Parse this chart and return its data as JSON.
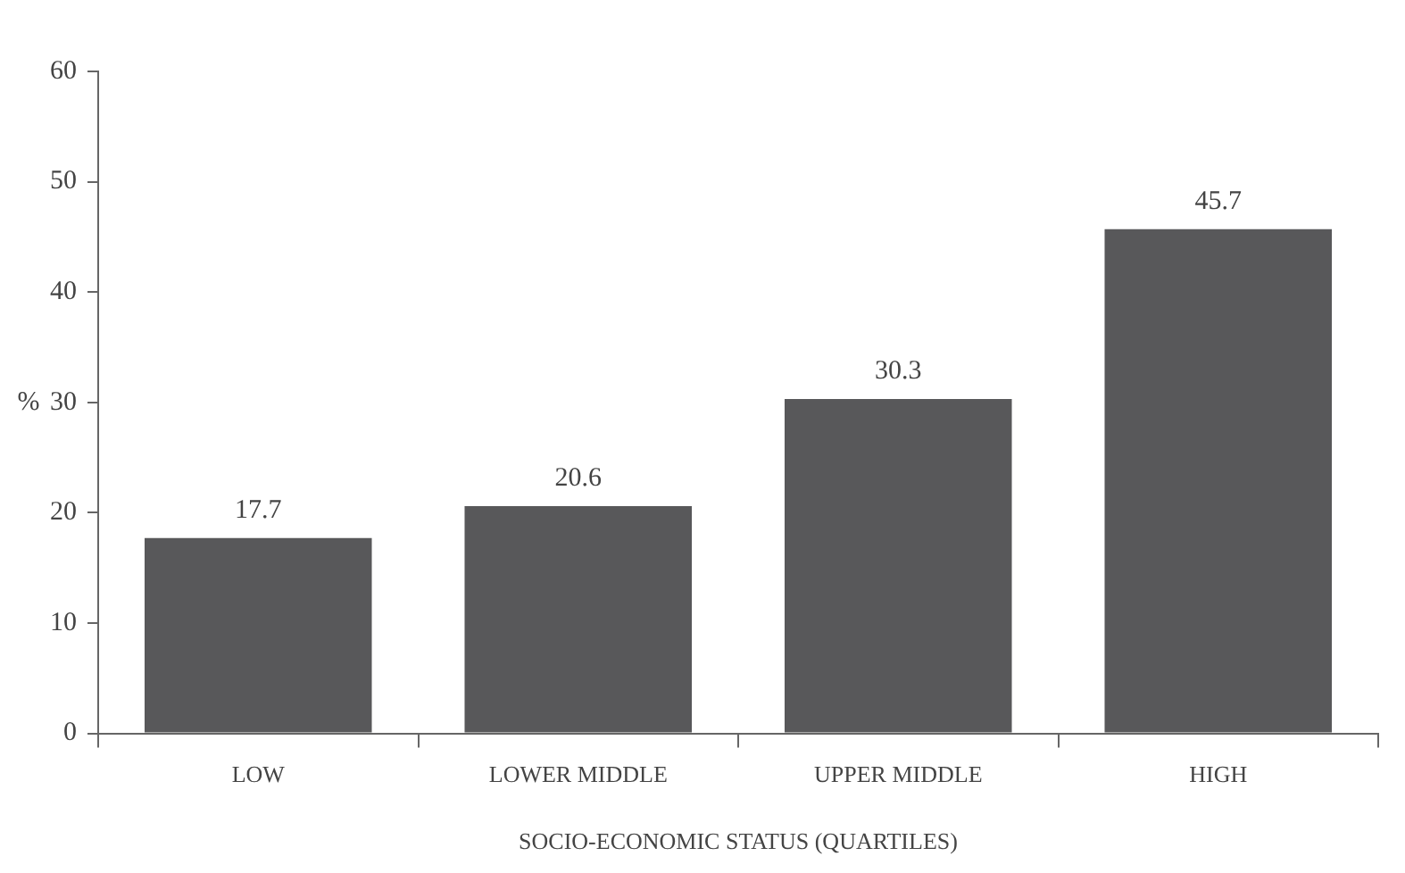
{
  "chart_data": {
    "type": "bar",
    "xlabel": "SOCIO-ECONOMIC STATUS (QUARTILES)",
    "ylabel": "%",
    "categories": [
      "LOW",
      "LOWER MIDDLE",
      "UPPER MIDDLE",
      "HIGH"
    ],
    "values": [
      17.7,
      20.6,
      30.3,
      45.7
    ],
    "color": "#58585a",
    "ylim": [
      0,
      60
    ],
    "yticks": [
      0,
      10,
      20,
      30,
      40,
      50,
      60
    ],
    "grid": false,
    "legend": false,
    "data_labels": true
  }
}
